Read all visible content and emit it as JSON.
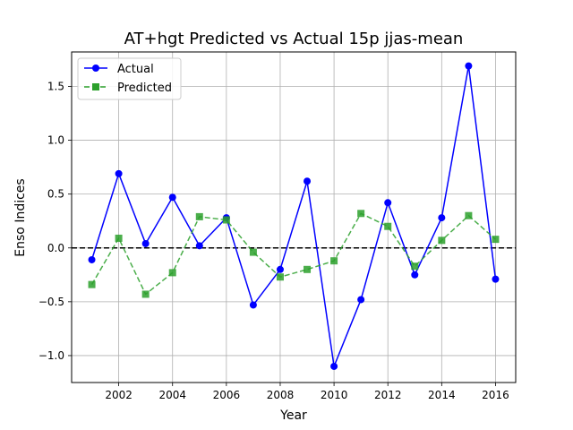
{
  "chart_data": {
    "type": "line",
    "title": "AT+hgt Predicted vs Actual 15p jjas-mean",
    "xlabel": "Year",
    "ylabel": "Enso Indices",
    "x": [
      2001,
      2002,
      2003,
      2004,
      2005,
      2006,
      2007,
      2008,
      2009,
      2010,
      2011,
      2012,
      2013,
      2014,
      2015,
      2016
    ],
    "xlim": [
      2000.25,
      2016.75
    ],
    "ylim": [
      -1.25,
      1.82
    ],
    "xticks": [
      2002,
      2004,
      2006,
      2008,
      2010,
      2012,
      2014,
      2016
    ],
    "xtick_labels": [
      "2002",
      "2004",
      "2006",
      "2008",
      "2010",
      "2012",
      "2014",
      "2016"
    ],
    "yticks": [
      -1.0,
      -0.5,
      0.0,
      0.5,
      1.0,
      1.5
    ],
    "ytick_labels": [
      "−1.0",
      "−0.5",
      "0.0",
      "0.5",
      "1.0",
      "1.5"
    ],
    "grid": true,
    "legend_position": "upper-left",
    "reference_line": {
      "y": 0,
      "style": "dashed",
      "color": "#000000"
    },
    "series": [
      {
        "name": "Actual",
        "color": "#0000ff",
        "marker": "circle",
        "linestyle": "solid",
        "values": [
          -0.11,
          0.69,
          0.04,
          0.47,
          0.02,
          0.28,
          -0.53,
          -0.2,
          0.62,
          -1.1,
          -0.48,
          0.42,
          -0.25,
          0.28,
          1.69,
          -0.29
        ]
      },
      {
        "name": "Predicted",
        "color": "#2ca02c",
        "marker": "square",
        "linestyle": "dashed",
        "values": [
          -0.34,
          0.09,
          -0.43,
          -0.23,
          0.29,
          0.26,
          -0.04,
          -0.27,
          -0.2,
          -0.12,
          0.32,
          0.2,
          -0.17,
          0.07,
          0.3,
          0.08
        ]
      }
    ]
  }
}
